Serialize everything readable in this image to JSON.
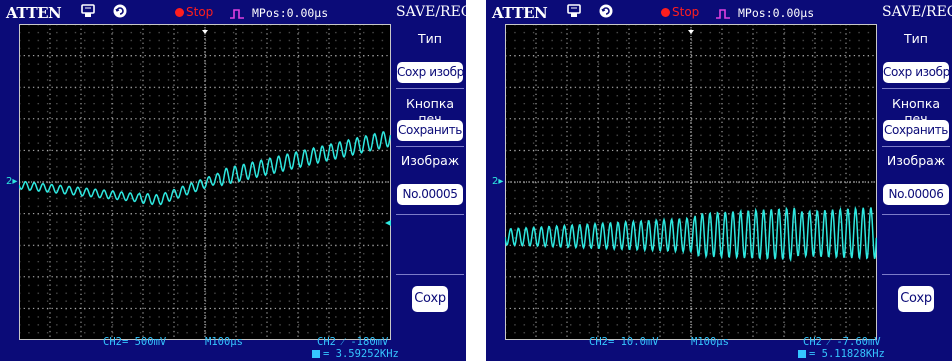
{
  "colors": {
    "background": "#0b0b78",
    "trace": "#2ee8e0",
    "status_stop": "#ff1e1e",
    "bottom_text": "#35c6ff",
    "menu_button": "#ffffff"
  },
  "screens": [
    {
      "brand": "ATTEN",
      "icons": [
        "usb-icon",
        "recycle-icon",
        "trigger-edge-icon"
      ],
      "status": "Stop",
      "mpos": "MPos:0.00µs",
      "mode": "SAVE/REC",
      "menu": {
        "type_title": "Тип",
        "type_value": "Сохр изобр",
        "print_title": "Кнопка печ",
        "print_value": "Сохранить",
        "image_title": "Изображ",
        "image_value": "No.00005",
        "save_button": "Сохр"
      },
      "bottom": {
        "ch2": "CH2= 500mV",
        "timebase": "M100µs",
        "trigger": "CH2 ⁄ -180mV",
        "frequency": "= 3.59252KHz"
      }
    },
    {
      "brand": "ATTEN",
      "icons": [
        "usb-icon",
        "recycle-icon",
        "trigger-edge-icon"
      ],
      "status": "Stop",
      "mpos": "MPos:0.00µs",
      "mode": "SAVE/REC",
      "menu": {
        "type_title": "Тип",
        "type_value": "Сохр изобр",
        "print_title": "Кнопка печ",
        "print_value": "Сохранить",
        "image_title": "Изображ",
        "image_value": "No.00006",
        "save_button": "Сохр"
      },
      "bottom": {
        "ch2": "CH2= 10.0mV",
        "timebase": "M100µs",
        "trigger": "CH2 ⁄ -7.60mV",
        "frequency": "= 5.11828KHz"
      }
    }
  ]
}
